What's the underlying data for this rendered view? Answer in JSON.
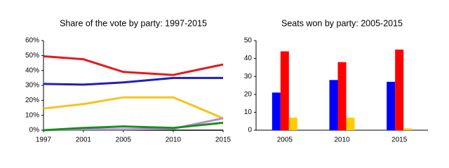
{
  "chart_data": [
    {
      "type": "line",
      "title": "Share of the vote by party: 1997-2015",
      "x": [
        1997,
        2001,
        2005,
        2010,
        2015
      ],
      "series": [
        {
          "color": "#e41a1c",
          "values": [
            49.5,
            47.5,
            39,
            37,
            44
          ]
        },
        {
          "color": "#1f1fbf",
          "values": [
            31,
            30.5,
            32,
            35,
            35
          ]
        },
        {
          "color": "#f5c518",
          "values": [
            14.5,
            17.5,
            22,
            22,
            8
          ]
        },
        {
          "color": "#b38ad8",
          "values": [
            0,
            0.5,
            0.5,
            1,
            8
          ]
        },
        {
          "color": "#1a8f1a",
          "values": [
            0,
            1.5,
            2.5,
            1.5,
            5
          ]
        }
      ],
      "xlim": [
        1997,
        2015
      ],
      "xticks": [
        1997,
        2001,
        2005,
        2010,
        2015
      ],
      "ylim": [
        0,
        60
      ],
      "yticks": [
        {
          "value": 0,
          "label": "0%"
        },
        {
          "value": 10,
          "label": "10%"
        },
        {
          "value": 20,
          "label": "20%"
        },
        {
          "value": 30,
          "label": "30%"
        },
        {
          "value": 40,
          "label": "40%"
        },
        {
          "value": 50,
          "label": "50%"
        },
        {
          "value": 60,
          "label": "60%"
        }
      ]
    },
    {
      "type": "bar",
      "title": "Seats won by party: 2005-2015",
      "categories": [
        "2005",
        "2010",
        "2015"
      ],
      "series": [
        {
          "color": "#0000ff",
          "values": [
            21,
            28,
            27
          ]
        },
        {
          "color": "#ff0000",
          "values": [
            44,
            38,
            45
          ]
        },
        {
          "color": "#ffcc00",
          "values": [
            7,
            7,
            1
          ]
        }
      ],
      "ylim": [
        0,
        50
      ],
      "yticks": [
        0,
        10,
        20,
        30,
        40,
        50
      ]
    }
  ]
}
